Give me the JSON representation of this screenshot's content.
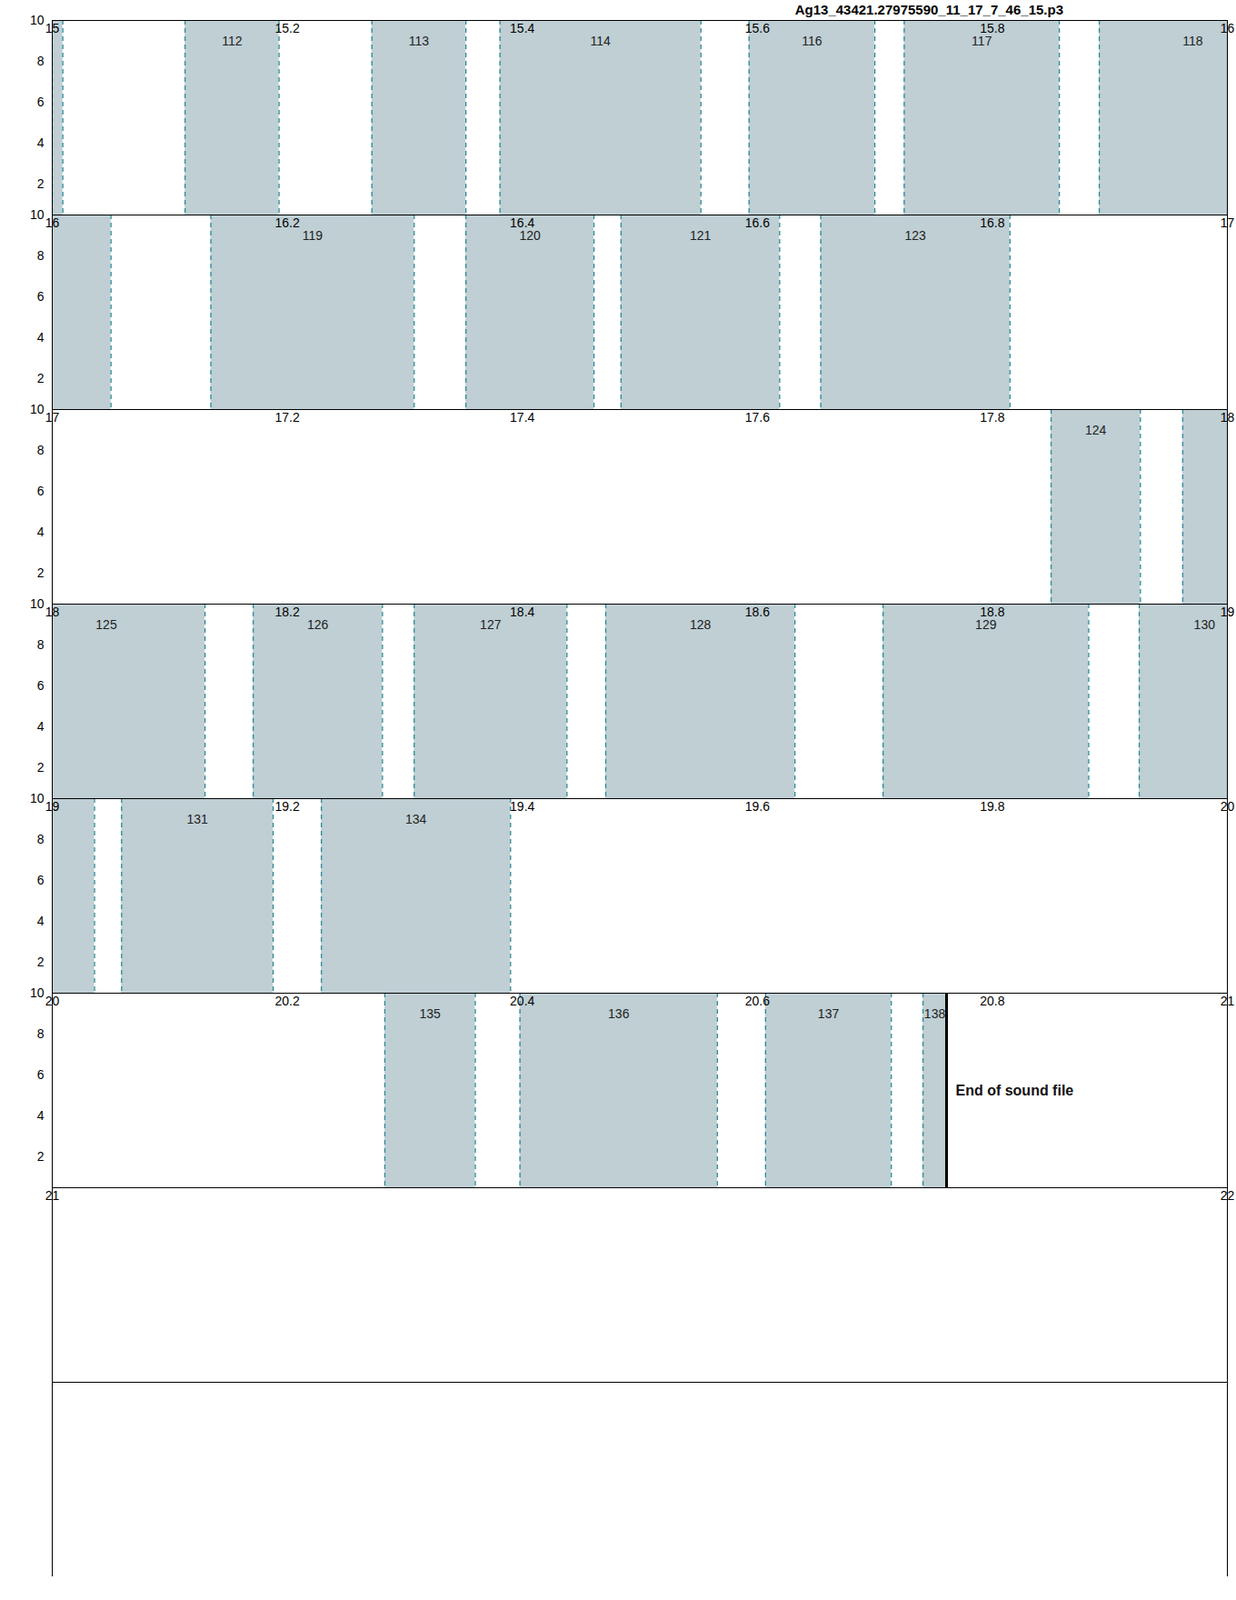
{
  "chart_data": {
    "type": "segments",
    "title": "Ag13_43421.27975590_11_17_7_46_15.p3",
    "color": "#bfcfd4",
    "ylim": [
      0.5,
      10
    ],
    "rows": [
      {
        "xlim": [
          15,
          16
        ],
        "xticks": [
          15,
          15.2,
          15.4,
          15.6,
          15.8,
          16
        ],
        "yticks": [
          2,
          4,
          6,
          8,
          10
        ]
      },
      {
        "xlim": [
          16,
          17
        ],
        "xticks": [
          16,
          16.2,
          16.4,
          16.6,
          16.8,
          17
        ],
        "yticks": [
          2,
          4,
          6,
          8,
          10
        ]
      },
      {
        "xlim": [
          17,
          18
        ],
        "xticks": [
          17,
          17.2,
          17.4,
          17.6,
          17.8,
          18
        ],
        "yticks": [
          2,
          4,
          6,
          8,
          10
        ]
      },
      {
        "xlim": [
          18,
          19
        ],
        "xticks": [
          18,
          18.2,
          18.4,
          18.6,
          18.8,
          19
        ],
        "yticks": [
          2,
          4,
          6,
          8,
          10
        ]
      },
      {
        "xlim": [
          19,
          20
        ],
        "xticks": [
          19,
          19.2,
          19.4,
          19.6,
          19.8,
          20
        ],
        "yticks": [
          2,
          4,
          6,
          8,
          10
        ]
      },
      {
        "xlim": [
          20,
          21
        ],
        "xticks": [
          20,
          20.2,
          20.4,
          20.6,
          20.8,
          21
        ],
        "yticks": [
          2,
          4,
          6,
          8,
          10
        ]
      },
      {
        "xlim": [
          21,
          22
        ],
        "xticks": [
          21,
          22
        ],
        "yticks": []
      },
      {
        "xlim": [
          22,
          23
        ],
        "xticks": [],
        "yticks": []
      }
    ],
    "segments": [
      {
        "label": null,
        "start": 15.0,
        "end": 15.009
      },
      {
        "label": "112",
        "start": 15.113,
        "end": 15.193
      },
      {
        "label": "113",
        "start": 15.272,
        "end": 15.352
      },
      {
        "label": "114",
        "start": 15.381,
        "end": 15.552
      },
      {
        "label": "116",
        "start": 15.593,
        "end": 15.7
      },
      {
        "label": "117",
        "start": 15.725,
        "end": 15.857
      },
      {
        "label": "118",
        "start": 15.891,
        "end": 16.05
      },
      {
        "label": "119",
        "start": 16.135,
        "end": 16.308
      },
      {
        "label": "120",
        "start": 16.352,
        "end": 16.461
      },
      {
        "label": "121",
        "start": 16.484,
        "end": 16.619
      },
      {
        "label": "123",
        "start": 16.654,
        "end": 16.815
      },
      {
        "label": "124",
        "start": 17.85,
        "end": 17.926
      },
      {
        "label": "125",
        "start": 17.962,
        "end": 18.13
      },
      {
        "label": "126",
        "start": 18.171,
        "end": 18.281
      },
      {
        "label": "127",
        "start": 18.308,
        "end": 18.438
      },
      {
        "label": "128",
        "start": 18.471,
        "end": 18.632
      },
      {
        "label": "129",
        "start": 18.707,
        "end": 18.882
      },
      {
        "label": "130",
        "start": 18.925,
        "end": 19.036
      },
      {
        "label": "131",
        "start": 19.059,
        "end": 19.188
      },
      {
        "label": "134",
        "start": 19.229,
        "end": 19.39
      },
      {
        "label": "135",
        "start": 20.283,
        "end": 20.36
      },
      {
        "label": "136",
        "start": 20.398,
        "end": 20.566
      },
      {
        "label": "137",
        "start": 20.607,
        "end": 20.714
      },
      {
        "label": "138",
        "start": 20.741,
        "end": 20.761
      }
    ],
    "annotation": {
      "x": 20.761,
      "label": "End of sound file"
    }
  }
}
